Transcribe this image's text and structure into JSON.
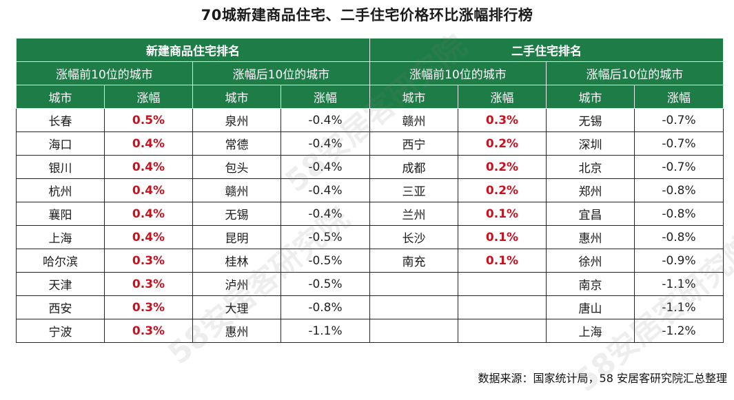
{
  "title": "70城新建商品住宅、二手住宅价格环比涨幅排行榜",
  "source": "数据来源：国家统计局，58 安居客研究院汇总整理",
  "watermark": "58安居客研究院",
  "colors": {
    "header_bg": "#1e7d47",
    "header_text": "#ffffff",
    "positive": "#c9101e"
  },
  "chart_data": {
    "type": "table",
    "sections": [
      {
        "name": "新建商品住宅排名",
        "groups": [
          {
            "name": "涨幅前10位的城市",
            "columns": [
              "城市",
              "涨幅"
            ],
            "rows": [
              {
                "city": "长春",
                "change": "0.5%"
              },
              {
                "city": "海口",
                "change": "0.4%"
              },
              {
                "city": "银川",
                "change": "0.4%"
              },
              {
                "city": "杭州",
                "change": "0.4%"
              },
              {
                "city": "襄阳",
                "change": "0.4%"
              },
              {
                "city": "上海",
                "change": "0.4%"
              },
              {
                "city": "哈尔滨",
                "change": "0.3%"
              },
              {
                "city": "天津",
                "change": "0.3%"
              },
              {
                "city": "西安",
                "change": "0.3%"
              },
              {
                "city": "宁波",
                "change": "0.3%"
              }
            ]
          },
          {
            "name": "涨幅后10位的城市",
            "columns": [
              "城市",
              "涨幅"
            ],
            "rows": [
              {
                "city": "泉州",
                "change": "-0.4%"
              },
              {
                "city": "常德",
                "change": "-0.4%"
              },
              {
                "city": "包头",
                "change": "-0.4%"
              },
              {
                "city": "赣州",
                "change": "-0.4%"
              },
              {
                "city": "无锡",
                "change": "-0.4%"
              },
              {
                "city": "昆明",
                "change": "-0.5%"
              },
              {
                "city": "桂林",
                "change": "-0.5%"
              },
              {
                "city": "泸州",
                "change": "-0.5%"
              },
              {
                "city": "大理",
                "change": "-0.8%"
              },
              {
                "city": "惠州",
                "change": "-1.1%"
              }
            ]
          }
        ]
      },
      {
        "name": "二手住宅排名",
        "groups": [
          {
            "name": "涨幅前10位的城市",
            "columns": [
              "城市",
              "涨幅"
            ],
            "rows": [
              {
                "city": "赣州",
                "change": "0.3%"
              },
              {
                "city": "西宁",
                "change": "0.2%"
              },
              {
                "city": "成都",
                "change": "0.2%"
              },
              {
                "city": "三亚",
                "change": "0.2%"
              },
              {
                "city": "兰州",
                "change": "0.1%"
              },
              {
                "city": "长沙",
                "change": "0.1%"
              },
              {
                "city": "南充",
                "change": "0.1%"
              }
            ]
          },
          {
            "name": "涨幅后10位的城市",
            "columns": [
              "城市",
              "涨幅"
            ],
            "rows": [
              {
                "city": "无锡",
                "change": "-0.7%"
              },
              {
                "city": "深圳",
                "change": "-0.7%"
              },
              {
                "city": "北京",
                "change": "-0.7%"
              },
              {
                "city": "郑州",
                "change": "-0.8%"
              },
              {
                "city": "宜昌",
                "change": "-0.8%"
              },
              {
                "city": "惠州",
                "change": "-0.8%"
              },
              {
                "city": "徐州",
                "change": "-0.9%"
              },
              {
                "city": "南京",
                "change": "-1.1%"
              },
              {
                "city": "唐山",
                "change": "-1.1%"
              },
              {
                "city": "上海",
                "change": "-1.2%"
              }
            ]
          }
        ]
      }
    ]
  }
}
